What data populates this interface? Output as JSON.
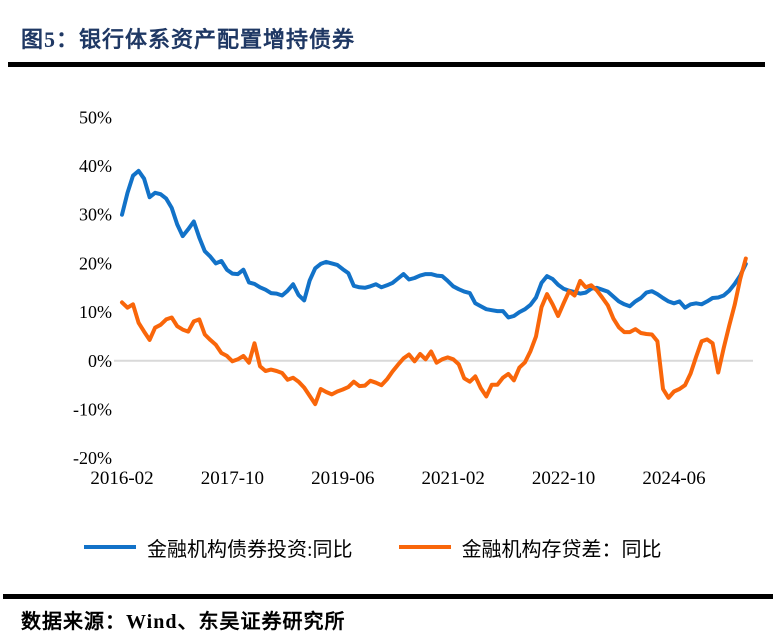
{
  "header": {
    "title": "图5：银行体系资产配置增持债券"
  },
  "footer": {
    "source": "数据来源：Wind、东吴证券研究所"
  },
  "colors": {
    "title_navy": "#1f3864",
    "series_blue": "#1272c8",
    "series_orange": "#f9660a",
    "zero_gridline_gray": "#d9d9d9",
    "rule_black": "#000000"
  },
  "chart_data": {
    "type": "line",
    "title": "银行体系资产配置增持债券",
    "xlabel": "",
    "ylabel": "",
    "ylim": [
      -20,
      50
    ],
    "y_ticks": [
      "50%",
      "40%",
      "30%",
      "20%",
      "10%",
      "0%",
      "-10%",
      "-20%"
    ],
    "x_ticks": [
      "2016-02",
      "2017-10",
      "2019-06",
      "2021-02",
      "2022-10",
      "2024-06"
    ],
    "grid": "horizontal zero line only",
    "legend_position": "bottom",
    "x": [
      "2016-02",
      "2016-03",
      "2016-04",
      "2016-05",
      "2016-06",
      "2016-07",
      "2016-08",
      "2016-09",
      "2016-10",
      "2016-11",
      "2016-12",
      "2017-01",
      "2017-02",
      "2017-03",
      "2017-04",
      "2017-05",
      "2017-06",
      "2017-07",
      "2017-08",
      "2017-09",
      "2017-10",
      "2017-11",
      "2017-12",
      "2018-01",
      "2018-02",
      "2018-03",
      "2018-04",
      "2018-05",
      "2018-06",
      "2018-07",
      "2018-08",
      "2018-09",
      "2018-10",
      "2018-11",
      "2018-12",
      "2019-01",
      "2019-02",
      "2019-03",
      "2019-04",
      "2019-05",
      "2019-06",
      "2019-07",
      "2019-08",
      "2019-09",
      "2019-10",
      "2019-11",
      "2019-12",
      "2020-01",
      "2020-02",
      "2020-03",
      "2020-04",
      "2020-05",
      "2020-06",
      "2020-07",
      "2020-08",
      "2020-09",
      "2020-10",
      "2020-11",
      "2020-12",
      "2021-01",
      "2021-02",
      "2021-03",
      "2021-04",
      "2021-05",
      "2021-06",
      "2021-07",
      "2021-08",
      "2021-09",
      "2021-10",
      "2021-11",
      "2021-12",
      "2022-01",
      "2022-02",
      "2022-03",
      "2022-04",
      "2022-05",
      "2022-06",
      "2022-07",
      "2022-08",
      "2022-09",
      "2022-10",
      "2022-11",
      "2022-12",
      "2023-01",
      "2023-02",
      "2023-03",
      "2023-04",
      "2023-05",
      "2023-06",
      "2023-07",
      "2023-08",
      "2023-09",
      "2023-10",
      "2023-11",
      "2023-12",
      "2024-01",
      "2024-02",
      "2024-03",
      "2024-04",
      "2024-05",
      "2024-06",
      "2024-07",
      "2024-08",
      "2024-09",
      "2024-10",
      "2024-11",
      "2024-12",
      "2025-01",
      "2025-02",
      "2025-03",
      "2025-04",
      "2025-05",
      "2025-06",
      "2025-07"
    ],
    "series": [
      {
        "id": "bond-investment-yoy",
        "name": "金融机构债券投资:同比",
        "color": "#1272c8",
        "values": [
          30.0,
          34.5,
          38.0,
          39.0,
          37.4,
          33.6,
          34.5,
          34.2,
          33.3,
          31.4,
          28.0,
          25.6,
          27.0,
          28.6,
          25.3,
          22.5,
          21.4,
          20.0,
          20.5,
          18.7,
          17.9,
          17.8,
          18.7,
          16.1,
          15.8,
          15.1,
          14.6,
          13.9,
          13.8,
          13.4,
          14.4,
          15.7,
          13.5,
          12.4,
          16.5,
          19.0,
          19.9,
          20.3,
          20.0,
          19.7,
          18.8,
          18.0,
          15.4,
          15.1,
          15.0,
          15.3,
          15.7,
          15.1,
          15.5,
          16.0,
          16.9,
          17.8,
          16.7,
          17.0,
          17.5,
          17.8,
          17.8,
          17.5,
          17.4,
          16.4,
          15.3,
          14.7,
          14.2,
          13.9,
          11.8,
          11.2,
          10.6,
          10.4,
          10.2,
          10.2,
          8.9,
          9.2,
          10.0,
          10.6,
          11.5,
          13.0,
          16.0,
          17.4,
          16.8,
          15.6,
          14.8,
          14.4,
          14.1,
          13.8,
          14.0,
          14.8,
          15.0,
          14.6,
          14.2,
          13.2,
          12.2,
          11.6,
          11.2,
          12.2,
          12.9,
          14.0,
          14.3,
          13.7,
          12.9,
          12.2,
          11.8,
          12.2,
          10.9,
          11.6,
          11.8,
          11.6,
          12.2,
          12.9,
          13.0,
          13.4,
          14.4,
          15.8,
          17.5,
          19.9
        ]
      },
      {
        "id": "deposit-loan-gap-yoy",
        "name": "金融机构存贷差：同比",
        "color": "#f9660a",
        "values": [
          12.0,
          10.9,
          11.6,
          7.8,
          6.0,
          4.3,
          6.8,
          7.4,
          8.5,
          8.9,
          7.1,
          6.4,
          6.0,
          8.1,
          8.5,
          5.4,
          4.3,
          3.3,
          1.6,
          1.0,
          -0.1,
          0.3,
          1.0,
          -0.4,
          3.6,
          -1.1,
          -2.1,
          -1.8,
          -2.1,
          -2.5,
          -3.9,
          -3.5,
          -4.3,
          -5.5,
          -7.2,
          -8.9,
          -5.8,
          -6.4,
          -6.9,
          -6.3,
          -5.9,
          -5.4,
          -4.3,
          -5.2,
          -5.1,
          -4.1,
          -4.5,
          -5.0,
          -3.8,
          -2.2,
          -0.8,
          0.5,
          1.3,
          -0.1,
          1.4,
          0.3,
          1.9,
          -0.4,
          0.3,
          0.7,
          0.3,
          -0.7,
          -3.6,
          -4.3,
          -3.2,
          -5.6,
          -7.3,
          -4.9,
          -4.9,
          -3.5,
          -2.7,
          -4.0,
          -1.4,
          -0.3,
          2.0,
          5.0,
          11.0,
          13.7,
          11.6,
          9.2,
          11.8,
          14.3,
          13.4,
          16.4,
          15.1,
          15.5,
          14.5,
          13.0,
          11.4,
          8.7,
          6.9,
          5.9,
          5.9,
          6.5,
          5.7,
          5.5,
          5.4,
          4.0,
          -5.8,
          -7.6,
          -6.3,
          -5.8,
          -5.0,
          -2.6,
          0.8,
          4.0,
          4.4,
          3.6,
          -2.4,
          2.6,
          7.2,
          11.5,
          16.8,
          21.0
        ]
      }
    ]
  }
}
